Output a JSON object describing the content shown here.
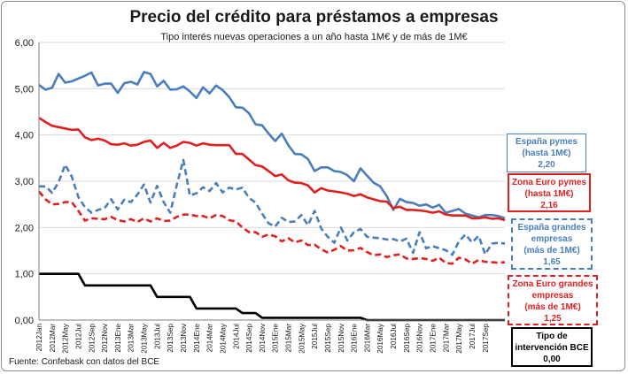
{
  "chart_data": {
    "type": "line",
    "title": "Precio del crédito para préstamos a empresas",
    "subtitle": "Tipo interés nuevas operaciones a un año hasta 1M€ y de más de 1M€",
    "source": "Fuente: Confebask con datos del BCE",
    "ylim": [
      0,
      6
    ],
    "yticks": [
      "0,00",
      "1,00",
      "2,00",
      "3,00",
      "4,00",
      "5,00",
      "6,00"
    ],
    "grid": true,
    "x_labels": [
      "2012Jan",
      "2012Mar",
      "2012May",
      "2012Jul",
      "2012Sep",
      "2012Nov",
      "2013Ene",
      "2013Mar",
      "2013May",
      "2013Jul",
      "2013Sep",
      "2013Nov",
      "2014Ene",
      "2014Mar",
      "2014May",
      "2014Jul",
      "2014Sep",
      "2014Nov",
      "2015Ene",
      "2015Mar",
      "2015May",
      "2015Jul",
      "2015Sep",
      "2015Nov",
      "2016Ene",
      "2016Mar",
      "2016May",
      "2016Jul",
      "2016Sep",
      "2016Nov",
      "2017Ene",
      "2017Mar",
      "2017May",
      "2017Jul",
      "2017Sep"
    ],
    "series": [
      {
        "key": "es_pymes",
        "color": "#4a7ebb",
        "dash": "solid",
        "label_lines": [
          "España pymes",
          "(hasta 1M€)",
          "2,20"
        ],
        "values": [
          5.08,
          4.98,
          5.02,
          5.32,
          5.13,
          5.16,
          5.22,
          5.28,
          5.35,
          5.07,
          5.11,
          5.11,
          4.91,
          5.12,
          5.15,
          5.09,
          5.36,
          5.32,
          5.05,
          5.17,
          4.98,
          4.99,
          5.05,
          4.94,
          4.8,
          5.03,
          4.9,
          5.07,
          4.97,
          4.82,
          4.6,
          4.59,
          4.47,
          4.23,
          4.21,
          4.03,
          3.87,
          4.03,
          3.78,
          3.59,
          3.58,
          3.48,
          3.22,
          3.3,
          3.3,
          3.22,
          3.2,
          3.13,
          3.0,
          3.28,
          3.12,
          2.97,
          2.89,
          2.68,
          2.38,
          2.62,
          2.55,
          2.53,
          2.47,
          2.5,
          2.43,
          2.49,
          2.32,
          2.36,
          2.4,
          2.3,
          2.26,
          2.22,
          2.27,
          2.27,
          2.25,
          2.2
        ]
      },
      {
        "key": "eu_pymes",
        "color": "#e02020",
        "dash": "solid",
        "label_lines": [
          "Zona Euro pymes",
          "(hasta 1M€)",
          "2,16"
        ],
        "values": [
          4.37,
          4.28,
          4.2,
          4.17,
          4.14,
          4.11,
          4.12,
          3.95,
          3.89,
          3.92,
          3.88,
          3.8,
          3.79,
          3.82,
          3.77,
          3.79,
          3.85,
          3.88,
          3.72,
          3.83,
          3.72,
          3.77,
          3.85,
          3.83,
          3.77,
          3.82,
          3.79,
          3.78,
          3.78,
          3.78,
          3.59,
          3.59,
          3.47,
          3.35,
          3.32,
          3.22,
          3.11,
          3.15,
          3.02,
          2.97,
          2.96,
          2.91,
          2.76,
          2.85,
          2.8,
          2.78,
          2.76,
          2.73,
          2.68,
          2.72,
          2.65,
          2.61,
          2.57,
          2.56,
          2.42,
          2.45,
          2.38,
          2.38,
          2.37,
          2.35,
          2.32,
          2.35,
          2.28,
          2.26,
          2.26,
          2.26,
          2.2,
          2.2,
          2.22,
          2.19,
          2.2,
          2.16
        ]
      },
      {
        "key": "es_grandes",
        "color": "#4a7ebb",
        "dash": "dashed",
        "label_lines": [
          "España grandes",
          "empresas",
          "(más de 1M€)",
          "1,65"
        ],
        "values": [
          2.89,
          2.89,
          2.75,
          2.98,
          3.36,
          3.1,
          2.66,
          2.44,
          2.32,
          2.38,
          2.42,
          2.61,
          2.39,
          2.6,
          2.55,
          2.71,
          2.93,
          2.54,
          2.9,
          2.55,
          2.32,
          2.92,
          3.46,
          2.69,
          2.74,
          2.87,
          2.79,
          2.96,
          2.76,
          2.86,
          2.82,
          2.86,
          2.64,
          2.54,
          2.3,
          2.09,
          2.02,
          2.21,
          2.12,
          2.13,
          2.27,
          2.05,
          2.36,
          1.98,
          1.8,
          1.67,
          2.0,
          1.72,
          1.9,
          1.97,
          1.8,
          1.78,
          1.77,
          1.74,
          1.75,
          1.7,
          1.76,
          1.45,
          1.9,
          1.55,
          1.6,
          1.55,
          1.51,
          1.41,
          1.7,
          1.85,
          1.68,
          1.82,
          1.42,
          1.65,
          1.67,
          1.65
        ]
      },
      {
        "key": "eu_grandes",
        "color": "#e02020",
        "dash": "dashed",
        "label_lines": [
          "Zona Euro grandes",
          "empresas",
          "(más de 1M€)",
          "1,25"
        ],
        "values": [
          2.78,
          2.61,
          2.5,
          2.51,
          2.55,
          2.55,
          2.36,
          2.15,
          2.2,
          2.19,
          2.18,
          2.23,
          2.16,
          2.13,
          2.18,
          2.12,
          2.2,
          2.13,
          2.2,
          2.14,
          2.15,
          2.23,
          2.28,
          2.28,
          2.25,
          2.25,
          2.2,
          2.27,
          2.25,
          2.16,
          2.13,
          2.0,
          1.9,
          1.9,
          1.8,
          1.85,
          1.81,
          1.7,
          1.77,
          1.68,
          1.72,
          1.62,
          1.63,
          1.53,
          1.46,
          1.52,
          1.6,
          1.5,
          1.51,
          1.56,
          1.47,
          1.4,
          1.42,
          1.36,
          1.4,
          1.42,
          1.33,
          1.32,
          1.34,
          1.32,
          1.28,
          1.35,
          1.23,
          1.22,
          1.35,
          1.31,
          1.22,
          1.3,
          1.26,
          1.25,
          1.24,
          1.25
        ]
      },
      {
        "key": "bce",
        "color": "#000000",
        "dash": "solid",
        "label_lines": [
          "Tipo de",
          "intervención BCE",
          "0,00"
        ],
        "values": [
          1.0,
          1.0,
          1.0,
          1.0,
          1.0,
          1.0,
          1.0,
          0.75,
          0.75,
          0.75,
          0.75,
          0.75,
          0.75,
          0.75,
          0.75,
          0.75,
          0.75,
          0.75,
          0.5,
          0.5,
          0.5,
          0.5,
          0.5,
          0.5,
          0.25,
          0.25,
          0.25,
          0.25,
          0.25,
          0.25,
          0.25,
          0.15,
          0.15,
          0.15,
          0.05,
          0.05,
          0.05,
          0.05,
          0.05,
          0.05,
          0.05,
          0.05,
          0.05,
          0.05,
          0.05,
          0.05,
          0.05,
          0.05,
          0.05,
          0.05,
          0.0,
          0.0,
          0.0,
          0.0,
          0.0,
          0.0,
          0.0,
          0.0,
          0.0,
          0.0,
          0.0,
          0.0,
          0.0,
          0.0,
          0.0,
          0.0,
          0.0,
          0.0,
          0.0,
          0.0,
          0.0,
          0.0
        ]
      }
    ]
  }
}
